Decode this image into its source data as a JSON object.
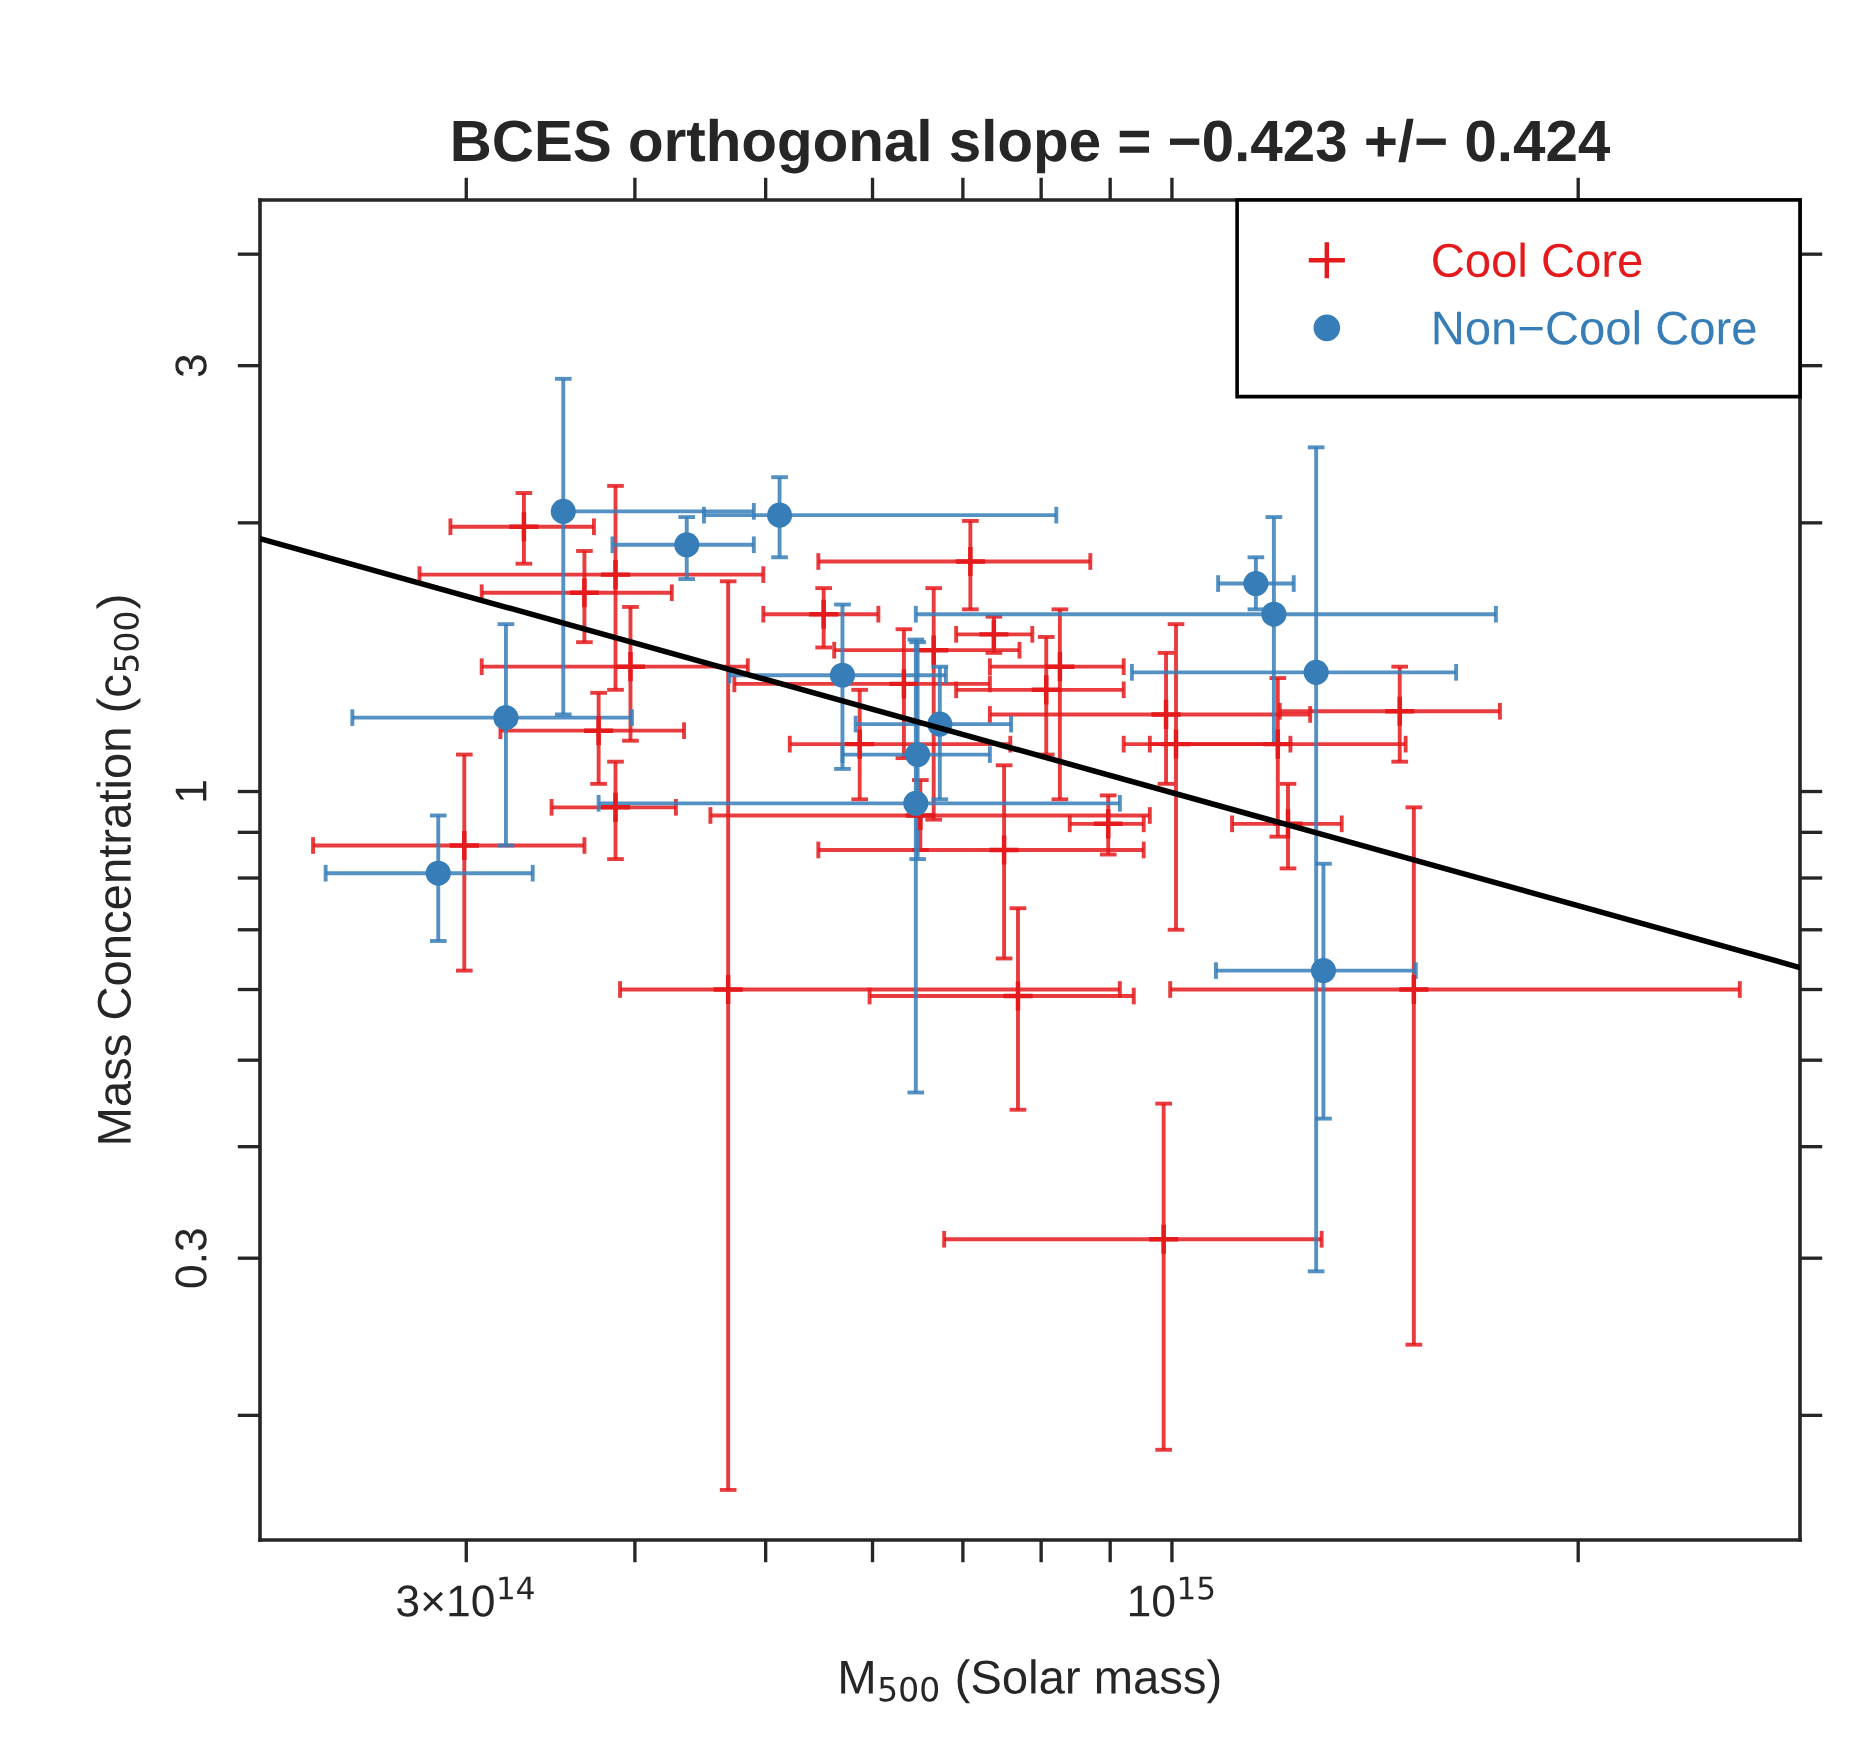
{
  "chart_data": {
    "type": "scatter",
    "title": "BCES orthogonal slope = −0.423 +/− 0.424",
    "xlabel": "M$_{500}$ (Solar mass)",
    "ylabel": "Mass Concentration (c$_{500}$)",
    "log": "xy",
    "grid": false,
    "legend": "top right",
    "xlim": [
      211000000000000.0,
      2920000000000000.0
    ],
    "ylim": [
      0.145,
      4.6
    ],
    "xticks": [
      {
        "value": 300000000000000.0,
        "label": "3×10$^{14}$"
      },
      {
        "value": 400000000000000.0,
        "label": null
      },
      {
        "value": 500000000000000.0,
        "label": null
      },
      {
        "value": 600000000000000.0,
        "label": null
      },
      {
        "value": 700000000000000.0,
        "label": null
      },
      {
        "value": 800000000000000.0,
        "label": null
      },
      {
        "value": 900000000000000.0,
        "label": null
      },
      {
        "value": 1000000000000000.0,
        "label": "10$^{15}$"
      },
      {
        "value": 2000000000000000.0,
        "label": null
      }
    ],
    "yticks": [
      {
        "value": 0.2,
        "label": null
      },
      0.3,
      {
        "value": 0.4,
        "label": null
      },
      {
        "value": 0.5,
        "label": null
      },
      {
        "value": 0.6,
        "label": null
      },
      {
        "value": 0.7,
        "label": null
      },
      {
        "value": 0.8,
        "label": null
      },
      {
        "value": 0.9,
        "label": null
      },
      1,
      {
        "value": 2,
        "label": null
      },
      3,
      {
        "value": 4,
        "label": null
      }
    ],
    "series": [
      {
        "name": "Cool Core",
        "marker": "cross",
        "color": "#e41a1c",
        "x": [
          331000000000000.0,
          387000000000000.0,
          367000000000000.0,
          397000000000000.0,
          376000000000000.0,
          387000000000000.0,
          299000000000000.0,
          469000000000000.0,
          769000000000000.0,
          1511000000000000.0,
          986000000000000.0,
          709000000000000.0,
          552000000000000.0,
          738000000000000.0,
          666000000000000.0,
          826000000000000.0,
          807000000000000.0,
          633000000000000.0,
          1007000000000000.0,
          1198000000000000.0,
          990000000000000.0,
          1475000000000000.0,
          1219000000000000.0,
          897000000000000.0,
          751000000000000.0,
          651000000000000.0,
          587000000000000.0
        ],
        "values": [
          1.98,
          1.75,
          1.67,
          1.38,
          1.17,
          0.96,
          0.87,
          0.6,
          0.59,
          0.6,
          0.315,
          1.81,
          1.58,
          1.5,
          1.44,
          1.38,
          1.3,
          1.32,
          1.13,
          1.13,
          1.22,
          1.23,
          0.92,
          0.92,
          0.86,
          0.94,
          1.13
        ],
        "xerrors": [
          [
            292000000000000.0,
            373000000000000.0
          ],
          [
            277000000000000.0,
            498000000000000.0
          ],
          [
            308000000000000.0,
            426000000000000.0
          ],
          [
            308000000000000.0,
            485000000000000.0
          ],
          [
            318000000000000.0,
            435000000000000.0
          ],
          [
            347000000000000.0,
            429000000000000.0
          ],
          [
            231000000000000.0,
            367000000000000.0
          ],
          [
            390000000000000.0,
            915000000000000.0
          ],
          [
            597000000000000.0,
            937000000000000.0
          ],
          [
            997000000000000.0,
            2635000000000000.0
          ],
          [
            678000000000000.0,
            1291000000000000.0
          ],
          [
            547000000000000.0,
            870000000000000.0
          ],
          [
            498000000000000.0,
            606000000000000.0
          ],
          [
            692000000000000.0,
            788000000000000.0
          ],
          [
            562000000000000.0,
            771000000000000.0
          ],
          [
            733000000000000.0,
            921000000000000.0
          ],
          [
            692000000000000.0,
            921000000000000.0
          ],
          [
            474000000000000.0,
            733000000000000.0
          ],
          [
            921000000000000.0,
            1224000000000000.0
          ],
          [
            963000000000000.0,
            1490000000000000.0
          ],
          [
            733000000000000.0,
            1266000000000000.0
          ],
          [
            1202000000000000.0,
            1750000000000000.0
          ],
          [
            1108000000000000.0,
            1336000000000000.0
          ],
          [
            840000000000000.0,
            953000000000000.0
          ],
          [
            547000000000000.0,
            953000000000000.0
          ],
          [
            455000000000000.0,
            963000000000000.0
          ],
          [
            521000000000000.0,
            759000000000000.0
          ]
        ],
        "errors": [
          [
            1.8,
            2.16
          ],
          [
            1.3,
            2.2
          ],
          [
            1.47,
            1.86
          ],
          [
            1.14,
            1.61
          ],
          [
            1.02,
            1.29
          ],
          [
            0.84,
            1.08
          ],
          [
            0.63,
            1.1
          ],
          [
            0.165,
            1.72
          ],
          [
            0.44,
            0.74
          ],
          [
            0.24,
            0.96
          ],
          [
            0.183,
            0.447
          ],
          [
            1.6,
            2.01
          ],
          [
            1.45,
            1.69
          ],
          [
            1.43,
            1.57
          ],
          [
            0.93,
            1.69
          ],
          [
            0.98,
            1.6
          ],
          [
            1.1,
            1.49
          ],
          [
            1.09,
            1.52
          ],
          [
            0.7,
            1.54
          ],
          [
            0.89,
            1.34
          ],
          [
            1.02,
            1.43
          ],
          [
            1.08,
            1.38
          ],
          [
            0.82,
            1.02
          ],
          [
            0.85,
            0.99
          ],
          [
            0.65,
            1.07
          ],
          [
            0.86,
            1.03
          ],
          [
            0.98,
            1.3
          ]
        ]
      },
      {
        "name": "Non−Cool Core",
        "marker": "circle",
        "color": "#377eb8",
        "x": [
          286000000000000.0,
          321000000000000.0,
          354000000000000.0,
          437000000000000.0,
          512000000000000.0,
          570000000000000.0,
          646000000000000.0,
          648000000000000.0,
          673000000000000.0,
          1154000000000000.0,
          1190000000000000.0,
          1279000000000000.0,
          1295000000000000.0
        ],
        "values": [
          0.81,
          1.21,
          2.06,
          1.89,
          2.04,
          1.35,
          0.97,
          1.1,
          1.19,
          1.71,
          1.58,
          1.36,
          0.63
        ],
        "xerrors": [
          [
            236000000000000.0,
            336000000000000.0
          ],
          [
            247000000000000.0,
            398000000000000.0
          ],
          [
            350000000000000.0,
            490000000000000.0
          ],
          [
            385000000000000.0,
            490000000000000.0
          ],
          [
            450000000000000.0,
            821000000000000.0
          ],
          [
            470000000000000.0,
            680000000000000.0
          ],
          [
            376000000000000.0,
            915000000000000.0
          ],
          [
            570000000000000.0,
            733000000000000.0
          ],
          [
            583000000000000.0,
            760000000000000.0
          ],
          [
            1082000000000000.0,
            1231000000000000.0
          ],
          [
            646000000000000.0,
            1738000000000000.0
          ],
          [
            934000000000000.0,
            1624000000000000.0
          ],
          [
            1078000000000000.0,
            1516000000000000.0
          ]
        ],
        "errors": [
          [
            0.68,
            0.94
          ],
          [
            0.87,
            1.54
          ],
          [
            1.22,
            2.9
          ],
          [
            1.73,
            2.03
          ],
          [
            1.83,
            2.25
          ],
          [
            1.06,
            1.62
          ],
          [
            0.46,
            1.48
          ],
          [
            0.84,
            1.47
          ],
          [
            0.98,
            1.38
          ],
          [
            1.6,
            1.83
          ],
          [
            1.13,
            2.03
          ],
          [
            0.29,
            2.43
          ],
          [
            0.43,
            0.83
          ]
        ]
      },
      {
        "type": "line",
        "color": "#000000",
        "line_style": "solid",
        "x": [
          211000000000000.0,
          2920000000000000.0
        ],
        "values": [
          1.92,
          0.635
        ]
      }
    ]
  }
}
